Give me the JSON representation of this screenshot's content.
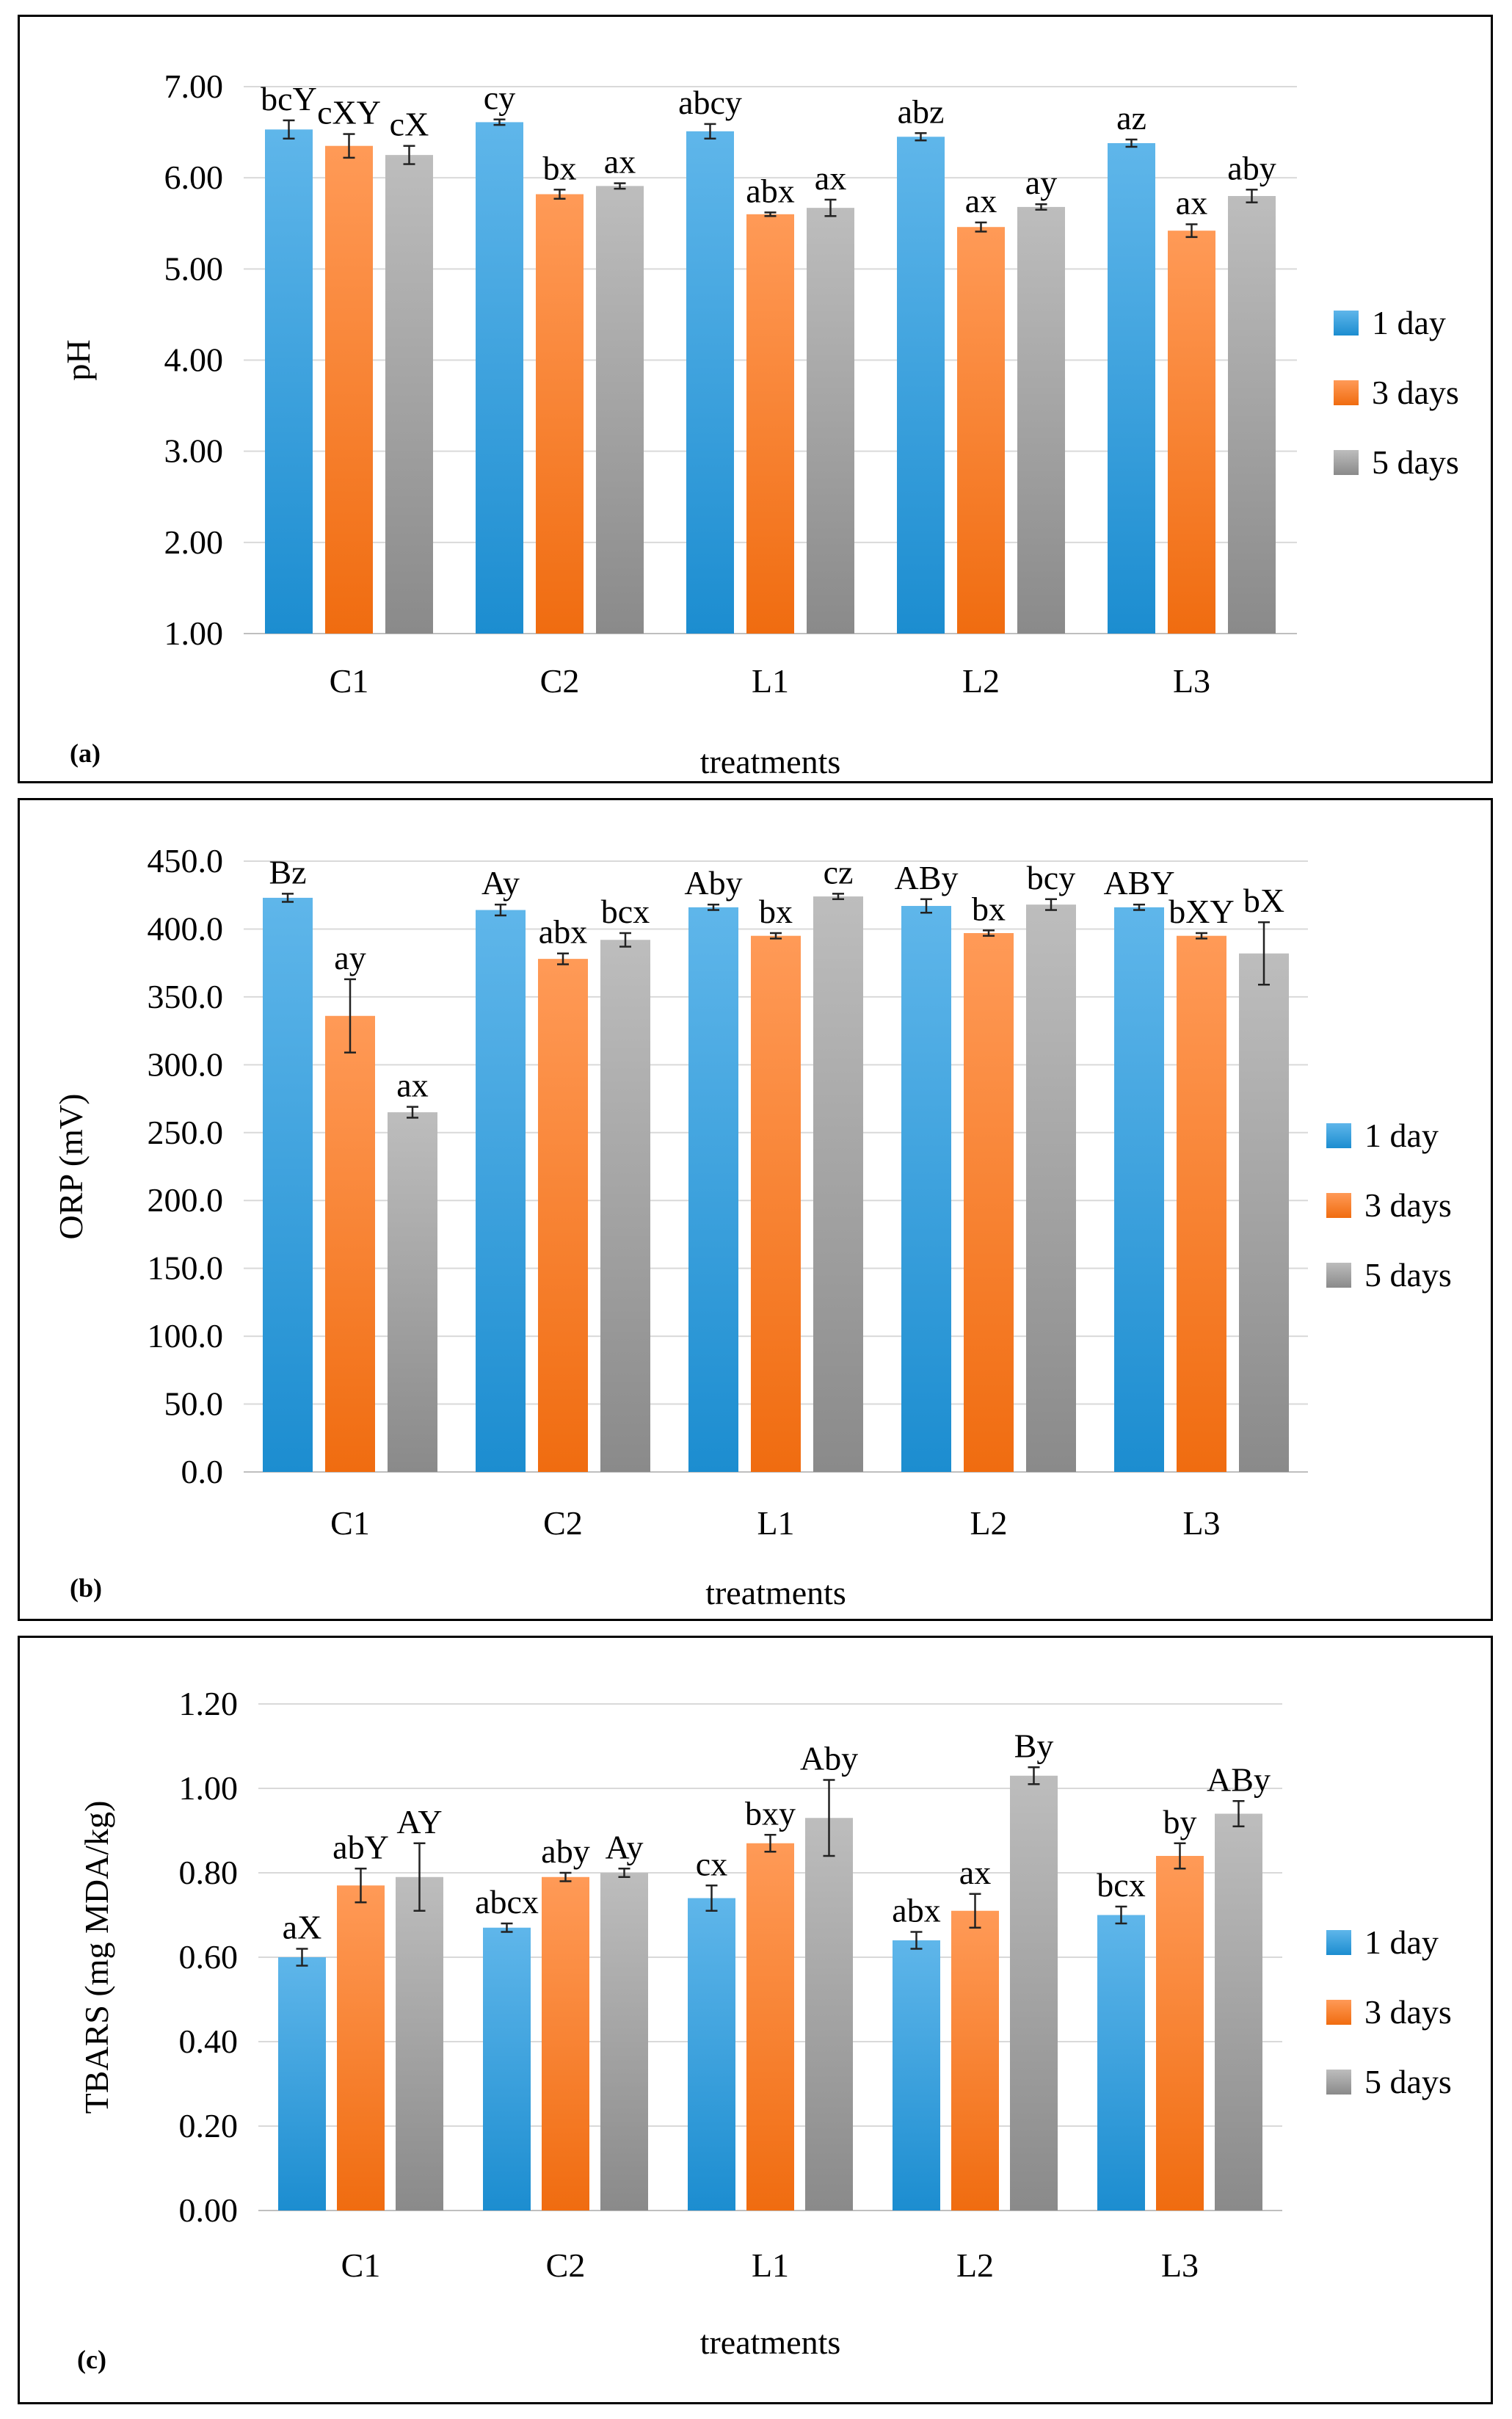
{
  "legend_colors": {
    "1 day": [
      "#5fb6ea",
      "#1c8dd0"
    ],
    "3 days": [
      "#ff9a57",
      "#f06c10"
    ],
    "5 days": [
      "#bdbdbd",
      "#8a8a8a"
    ]
  },
  "chart_data": [
    {
      "type": "bar",
      "panel_label": "(a)",
      "xlabel": "treatments",
      "ylabel": "pH",
      "ylim": [
        1.0,
        7.0
      ],
      "yticks": [
        "1.00",
        "2.00",
        "3.00",
        "4.00",
        "5.00",
        "6.00",
        "7.00"
      ],
      "grid": true,
      "legend_position": "right",
      "categories": [
        "C1",
        "C2",
        "L1",
        "L2",
        "L3"
      ],
      "series": [
        {
          "name": "1 day",
          "values": [
            6.53,
            6.61,
            6.51,
            6.45,
            6.38
          ],
          "errors": [
            0.1,
            0.03,
            0.08,
            0.04,
            0.04
          ],
          "labels": [
            "bcY",
            "cy",
            "abcy",
            "abz",
            "az"
          ]
        },
        {
          "name": "3 days",
          "values": [
            6.35,
            5.82,
            5.6,
            5.46,
            5.42
          ],
          "errors": [
            0.13,
            0.05,
            0.02,
            0.05,
            0.07
          ],
          "labels": [
            "cXY",
            "bx",
            "abx",
            "ax",
            "ax"
          ]
        },
        {
          "name": "5 days",
          "values": [
            6.25,
            5.91,
            5.67,
            5.68,
            5.8
          ],
          "errors": [
            0.1,
            0.03,
            0.09,
            0.03,
            0.07
          ],
          "labels": [
            "cX",
            "ax",
            "ax",
            "ay",
            "aby"
          ]
        }
      ]
    },
    {
      "type": "bar",
      "panel_label": "(b)",
      "xlabel": "treatments",
      "ylabel": "ORP  (mV)",
      "ylim": [
        0,
        450
      ],
      "yticks": [
        "0.0",
        "50.0",
        "100.0",
        "150.0",
        "200.0",
        "250.0",
        "300.0",
        "350.0",
        "400.0",
        "450.0"
      ],
      "grid": true,
      "legend_position": "right",
      "categories": [
        "C1",
        "C2",
        "L1",
        "L2",
        "L3"
      ],
      "series": [
        {
          "name": "1 day",
          "values": [
            423,
            414,
            416,
            417,
            416
          ],
          "errors": [
            3,
            4,
            2,
            5,
            2
          ],
          "labels": [
            "Bz",
            "Ay",
            "Aby",
            "ABy",
            "ABY"
          ]
        },
        {
          "name": "3 days",
          "values": [
            336,
            378,
            395,
            397,
            395
          ],
          "errors": [
            27,
            4,
            2,
            2,
            2
          ],
          "labels": [
            "ay",
            "abx",
            "bx",
            "bx",
            "bXY"
          ]
        },
        {
          "name": "5 days",
          "values": [
            265,
            392,
            424,
            418,
            382
          ],
          "errors": [
            4,
            5,
            2,
            4,
            23
          ],
          "labels": [
            "ax",
            "bcx",
            "cz",
            "bcy",
            "bX"
          ]
        }
      ]
    },
    {
      "type": "bar",
      "panel_label": "(c)",
      "xlabel": "treatments",
      "ylabel": "TBARS  (mg  MDA/kg)",
      "ylim": [
        0,
        1.2
      ],
      "yticks": [
        "0.00",
        "0.20",
        "0.40",
        "0.60",
        "0.80",
        "1.00",
        "1.20"
      ],
      "grid": true,
      "legend_position": "right",
      "categories": [
        "C1",
        "C2",
        "L1",
        "L2",
        "L3"
      ],
      "series": [
        {
          "name": "1 day",
          "values": [
            0.6,
            0.67,
            0.74,
            0.64,
            0.7
          ],
          "errors": [
            0.02,
            0.01,
            0.03,
            0.02,
            0.02
          ],
          "labels": [
            "aX",
            "abcx",
            "cx",
            "abx",
            "bcx"
          ]
        },
        {
          "name": "3 days",
          "values": [
            0.77,
            0.79,
            0.87,
            0.71,
            0.84
          ],
          "errors": [
            0.04,
            0.01,
            0.02,
            0.04,
            0.03
          ],
          "labels": [
            "abY",
            "aby",
            "bxy",
            "ax",
            "by"
          ]
        },
        {
          "name": "5 days",
          "values": [
            0.79,
            0.8,
            0.93,
            1.03,
            0.94
          ],
          "errors": [
            0.08,
            0.01,
            0.09,
            0.02,
            0.03
          ],
          "labels": [
            "AY",
            "Ay",
            "Aby",
            "By",
            "ABy"
          ]
        }
      ]
    }
  ]
}
